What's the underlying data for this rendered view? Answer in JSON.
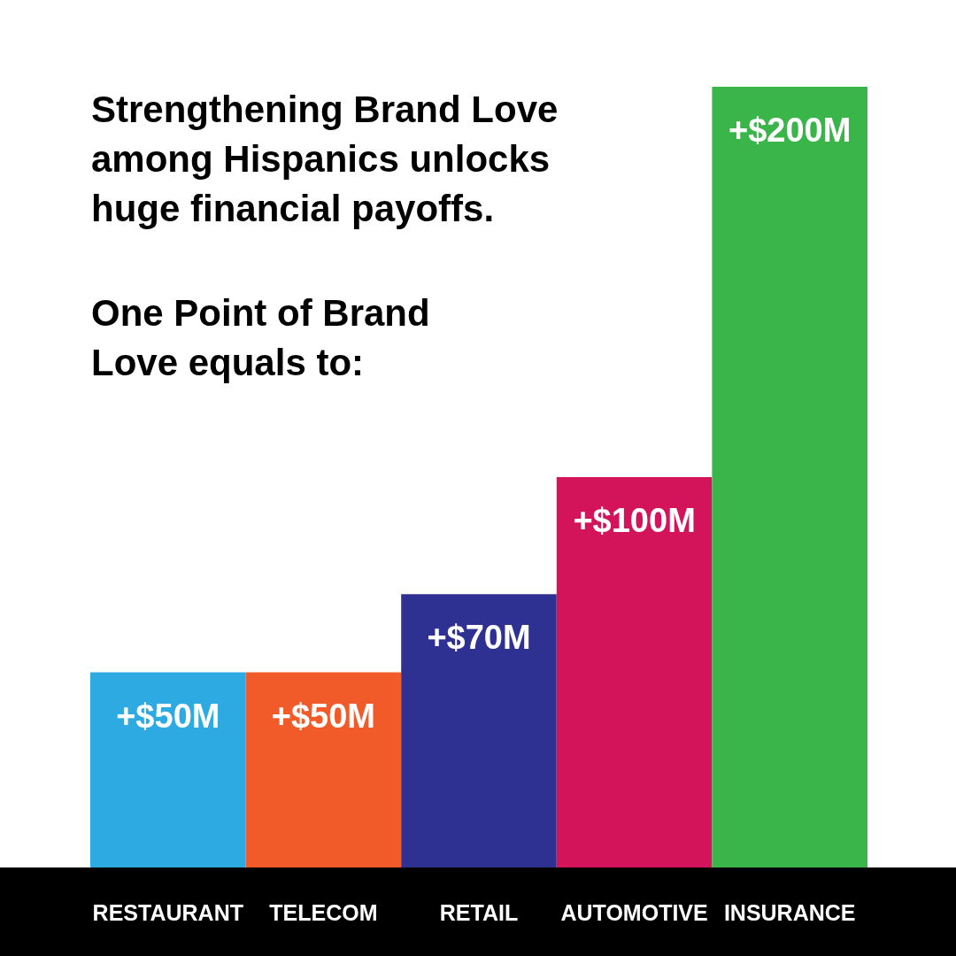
{
  "chart_data": {
    "type": "bar",
    "title": "Strengthening Brand Love among Hispanics unlocks huge financial payoffs.",
    "subtitle": "One Point of Brand Love equals to:",
    "categories": [
      "RESTAURANT",
      "TELECOM",
      "RETAIL",
      "AUTOMOTIVE",
      "INSURANCE"
    ],
    "values": [
      50,
      50,
      70,
      100,
      200
    ],
    "value_labels": [
      "+$50M",
      "+$50M",
      "+$70M",
      "+$100M",
      "+$200M"
    ],
    "colors": [
      "#2daae1",
      "#f15a29",
      "#2e3192",
      "#d4145a",
      "#39b54a"
    ]
  }
}
